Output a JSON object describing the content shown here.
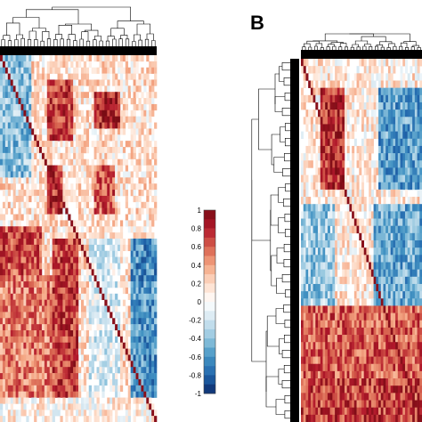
{
  "panels": [
    {
      "label": ""
    },
    {
      "label": "B"
    }
  ],
  "colorbar": {
    "tick_labels": [
      "1",
      "0.8",
      "0.6",
      "0.4",
      "0.2",
      "0",
      "-0.2",
      "-0.4",
      "-0.6",
      "-0.8",
      "-1"
    ],
    "colors": [
      "#7a0c14",
      "#b2182b",
      "#d6604d",
      "#f4a582",
      "#fddbc7",
      "#ffffff",
      "#d1e5f0",
      "#92c5de",
      "#4393c3",
      "#2166ac",
      "#0b2a6b"
    ]
  },
  "chart_data": [
    {
      "type": "heatmap",
      "title": "",
      "panel": "A",
      "scale": [
        -1,
        1
      ],
      "description_blocks": "clustered correlation matrix with dendrogram on top"
    },
    {
      "type": "heatmap",
      "title": "",
      "panel": "B",
      "scale": [
        -1,
        1
      ]
    }
  ]
}
